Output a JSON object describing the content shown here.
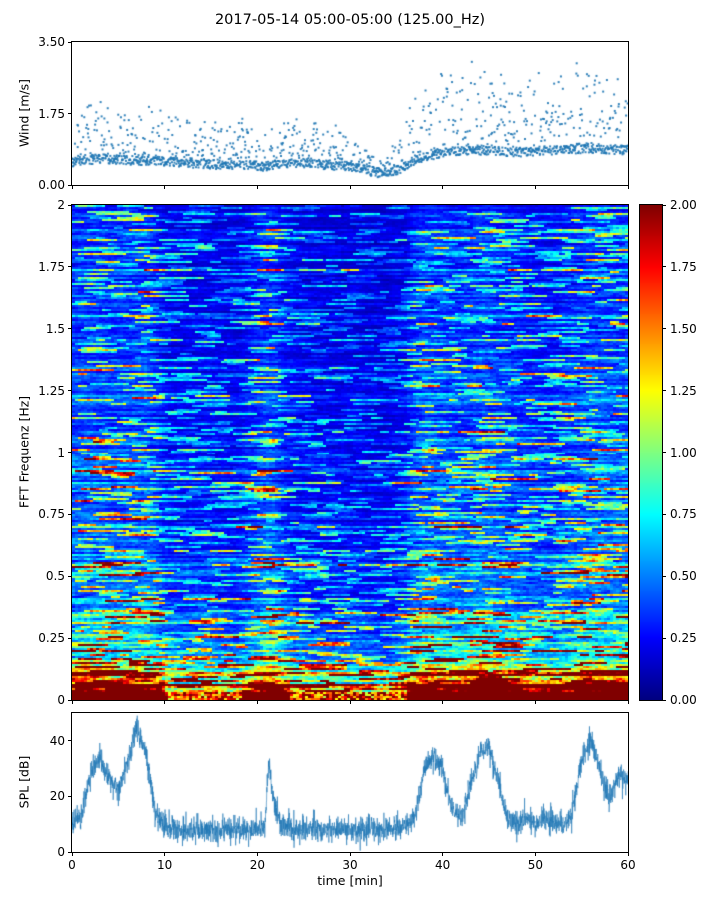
{
  "title": "2017-05-14 05:00-05:00 (125.00_Hz)",
  "accent_color": "#1f77b4",
  "spine_color": "#000000",
  "chart_data": [
    {
      "type": "scatter",
      "name": "wind-speed",
      "ylabel": "Wind [m/s]",
      "ylim": [
        0,
        3.5
      ],
      "yticks": {
        "values": [
          0,
          1.75,
          3.5
        ],
        "labels": [
          "0.00",
          "1.75",
          "3.50"
        ]
      },
      "xlim": [
        0,
        60
      ],
      "marker_color": "#1f77b4",
      "points_per_minute": 30,
      "envelope": {
        "t": [
          0,
          3,
          6,
          9,
          12,
          15,
          18,
          21,
          24,
          27,
          30,
          33,
          35,
          37,
          40,
          44,
          48,
          52,
          56,
          60
        ],
        "base": [
          0.55,
          0.65,
          0.6,
          0.6,
          0.55,
          0.5,
          0.5,
          0.45,
          0.55,
          0.5,
          0.45,
          0.3,
          0.35,
          0.6,
          0.8,
          0.85,
          0.8,
          0.85,
          0.9,
          0.85
        ],
        "spread": [
          0.5,
          0.7,
          0.5,
          0.6,
          0.5,
          0.45,
          0.5,
          0.4,
          0.55,
          0.45,
          0.4,
          0.12,
          0.3,
          0.7,
          0.9,
          1.0,
          0.8,
          0.9,
          1.0,
          0.9
        ],
        "max": [
          2.1,
          2.6,
          2.2,
          2.4,
          2.1,
          1.9,
          2.2,
          1.7,
          2.5,
          1.9,
          1.7,
          0.8,
          1.5,
          2.8,
          3.4,
          3.5,
          3.0,
          3.2,
          3.5,
          3.4
        ]
      }
    },
    {
      "type": "heatmap",
      "name": "fft-spectrogram",
      "ylabel": "FFT Frequenz [Hz]",
      "ylim": [
        0,
        2
      ],
      "yticks": {
        "values": [
          0,
          0.25,
          0.5,
          0.75,
          1,
          1.25,
          1.5,
          1.75,
          2
        ],
        "labels": [
          "0",
          "0.25",
          "0.5",
          "0.75",
          "1",
          "1.25",
          "1.5",
          "1.75",
          "2"
        ]
      },
      "xlim": [
        0,
        60
      ],
      "colormap": "jet",
      "clim": [
        0,
        2
      ],
      "colorbar_ticks": {
        "values": [
          0,
          0.25,
          0.5,
          0.75,
          1,
          1.25,
          1.5,
          1.75,
          2
        ],
        "labels": [
          "0.00",
          "0.25",
          "0.50",
          "0.75",
          "1.00",
          "1.25",
          "1.50",
          "1.75",
          "2.00"
        ]
      },
      "grid": {
        "cols": 186,
        "rows": 248
      },
      "time_intensity": {
        "t": [
          0,
          2,
          4,
          6,
          8,
          9,
          10,
          12,
          14,
          16,
          18,
          20,
          21,
          22,
          23,
          24,
          26,
          28,
          30,
          32,
          34,
          36,
          37,
          38,
          40,
          42,
          44,
          46,
          48,
          50,
          52,
          54,
          56,
          58,
          60
        ],
        "v": [
          0.95,
          1,
          0.9,
          0.95,
          1,
          0.8,
          0.5,
          0.42,
          0.48,
          0.45,
          0.42,
          0.75,
          1,
          0.9,
          0.6,
          0.45,
          0.4,
          0.38,
          0.36,
          0.33,
          0.3,
          0.45,
          0.8,
          1,
          0.9,
          0.85,
          1,
          0.9,
          0.8,
          0.7,
          0.65,
          0.85,
          1,
          0.9,
          1
        ]
      },
      "freq_base": {
        "f": [
          0,
          0.02,
          0.05,
          0.1,
          0.18,
          0.3,
          0.5,
          0.8,
          1.3,
          2
        ],
        "v": [
          2.2,
          1.6,
          1.1,
          0.8,
          0.55,
          0.42,
          0.33,
          0.27,
          0.24,
          0.22
        ]
      }
    },
    {
      "type": "line",
      "name": "spl",
      "ylabel": "SPL [dB]",
      "xlabel": "time [min]",
      "ylim": [
        0,
        50
      ],
      "yticks": {
        "values": [
          0,
          20,
          40
        ],
        "labels": [
          "0",
          "20",
          "40"
        ]
      },
      "xticks": {
        "values": [
          0,
          10,
          20,
          30,
          40,
          50,
          60
        ],
        "labels": [
          "0",
          "10",
          "20",
          "30",
          "40",
          "50",
          "60"
        ]
      },
      "line_color": "#1f77b4",
      "samples_per_minute": 50,
      "noise_db": 2.2,
      "envelope": {
        "t": [
          0,
          1,
          2,
          3,
          4,
          5,
          6,
          7,
          8,
          9,
          10,
          12,
          15,
          18,
          20,
          20.8,
          21.2,
          21.8,
          22.5,
          24,
          26,
          28,
          30,
          32,
          34,
          36,
          37,
          38,
          39,
          40,
          41,
          42,
          43,
          44,
          45,
          46,
          47,
          48,
          49,
          50,
          51,
          52,
          53,
          54,
          55,
          56,
          57,
          58,
          59,
          60
        ],
        "v": [
          10,
          13,
          28,
          34,
          26,
          22,
          33,
          44,
          34,
          14,
          9,
          8,
          8,
          8,
          8,
          9,
          32,
          18,
          10,
          8,
          8,
          8,
          8,
          8,
          8,
          9,
          12,
          30,
          35,
          29,
          15,
          12,
          24,
          35,
          38,
          26,
          12,
          10,
          12,
          10,
          12,
          10,
          10,
          14,
          34,
          40,
          29,
          19,
          28,
          26
        ]
      }
    }
  ]
}
